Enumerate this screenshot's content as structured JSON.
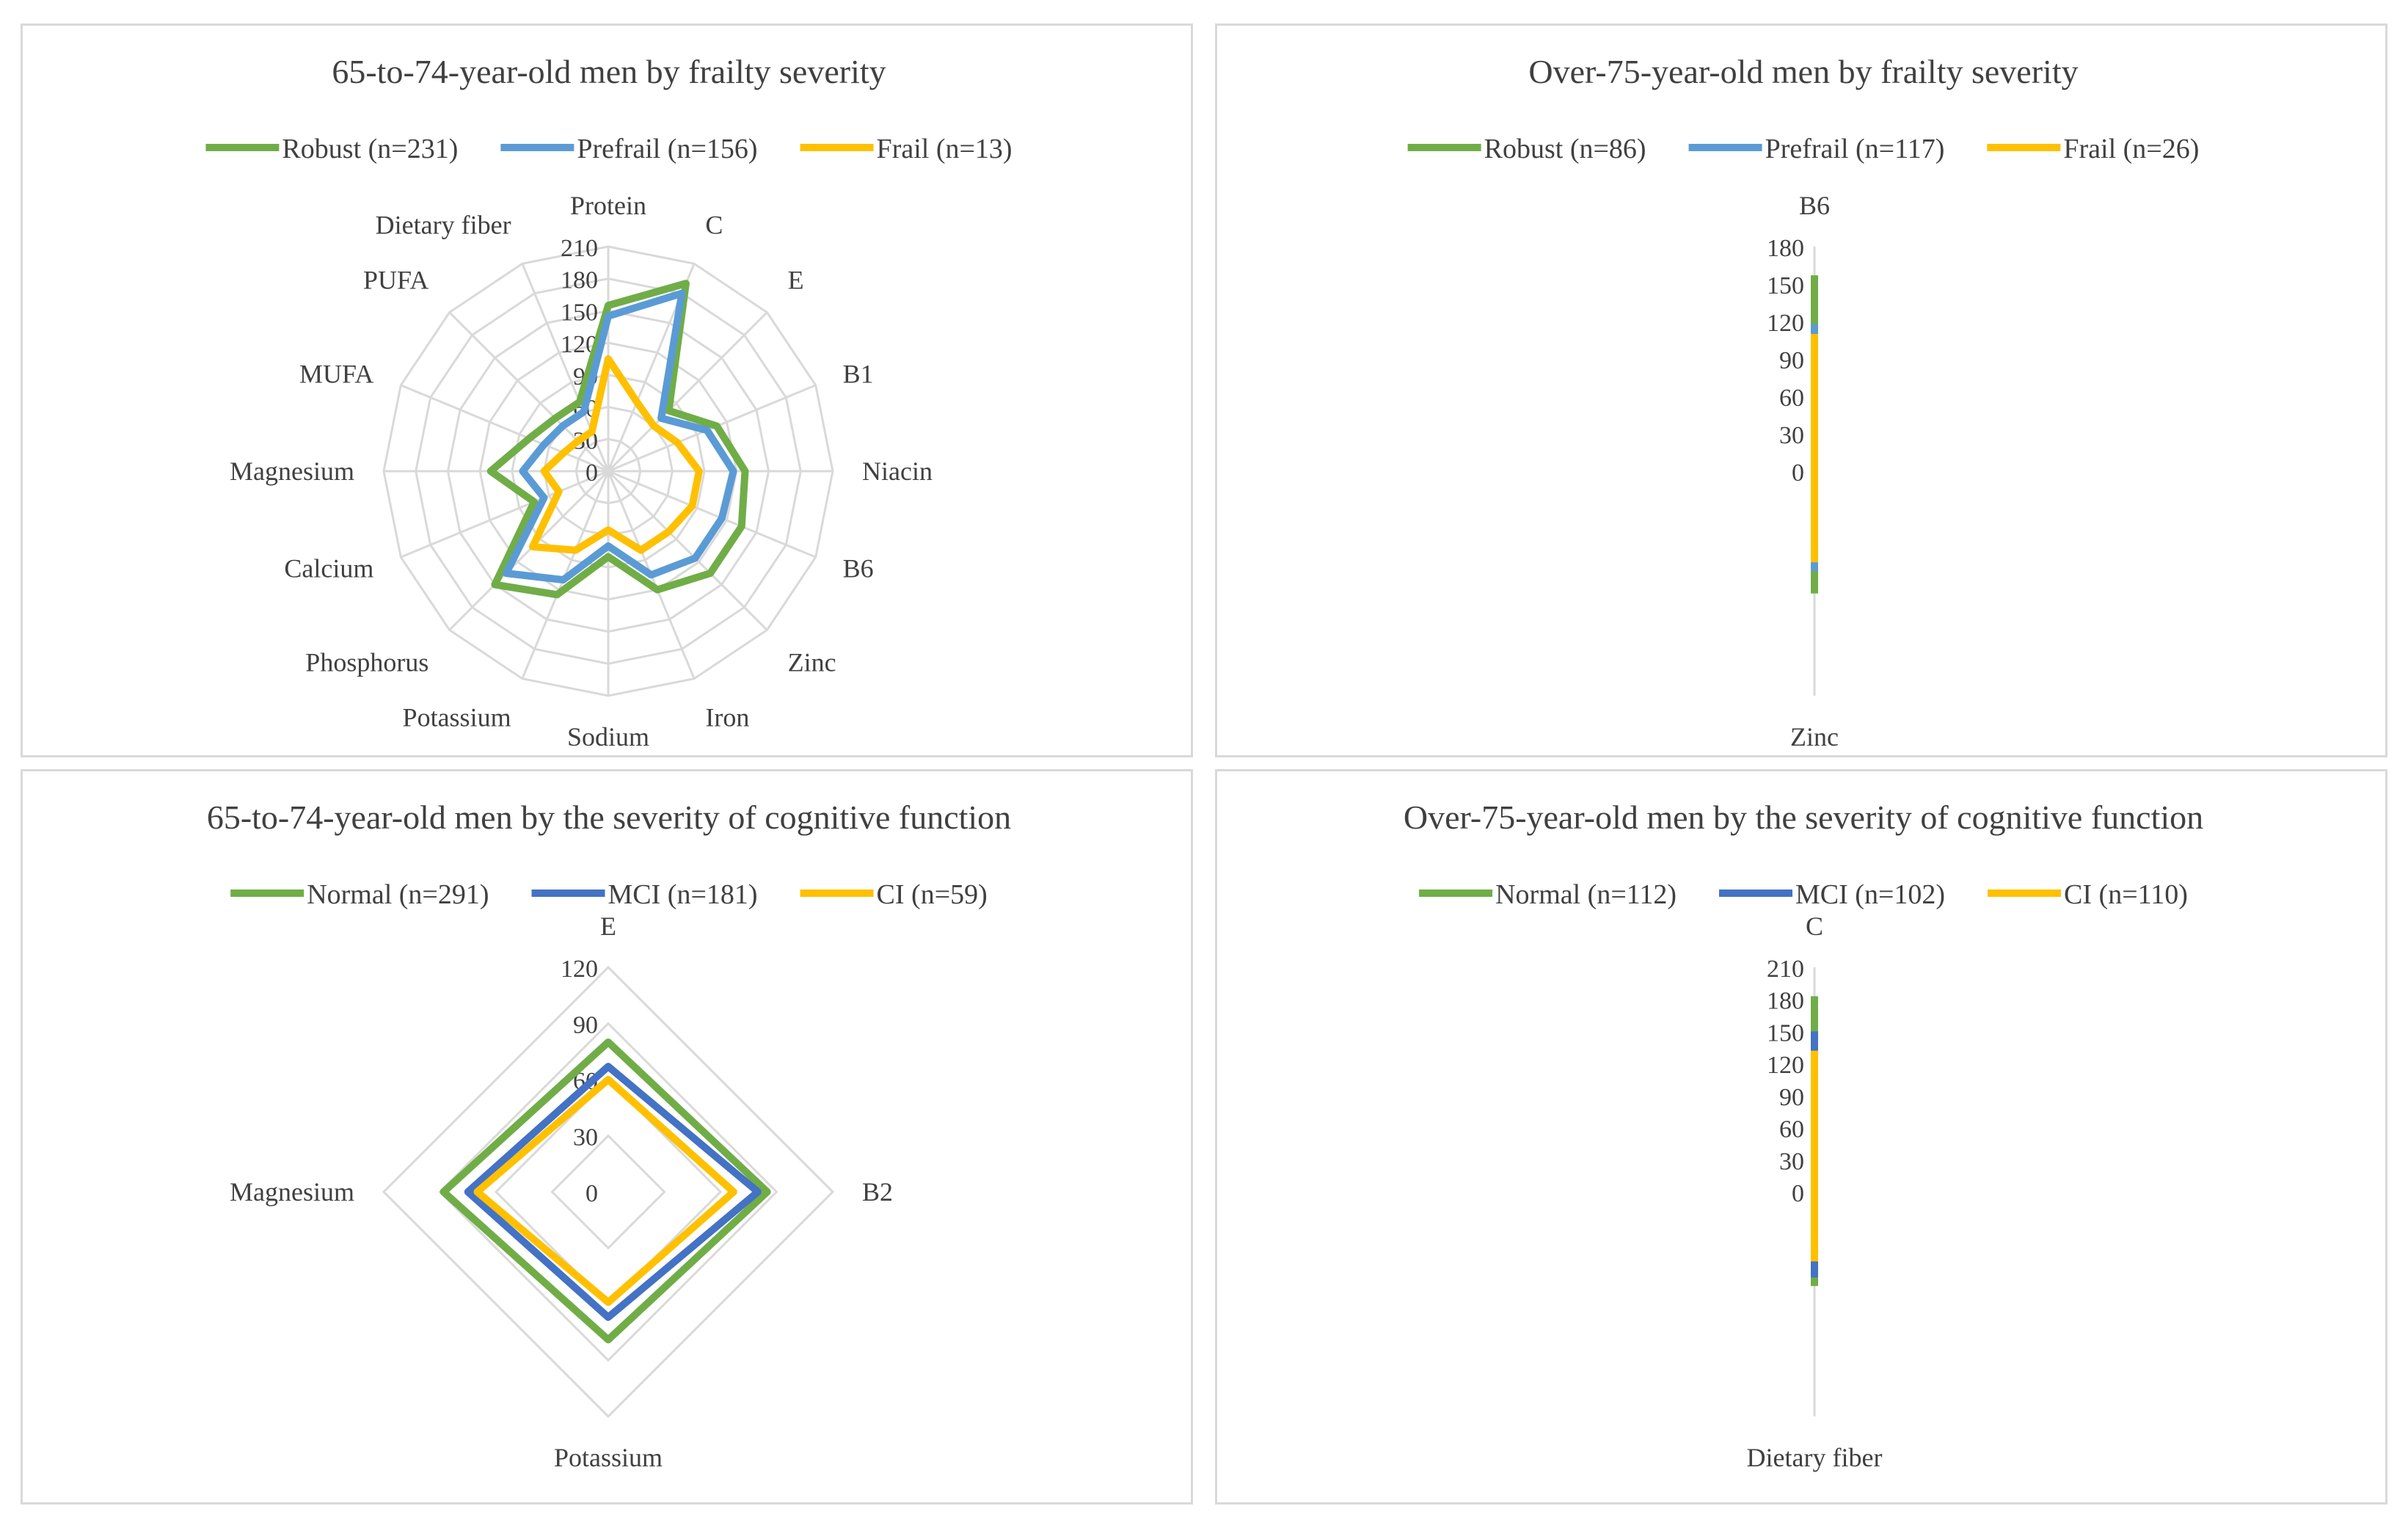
{
  "colors": {
    "green": "#70AD47",
    "light_blue": "#5B9BD5",
    "dark_blue": "#4472C4",
    "yellow": "#FFC000",
    "grid": "#d9d9d9",
    "text": "#404040"
  },
  "chart_data": [
    {
      "type": "radar",
      "title": "65-to-74-year-old men by frailty severity",
      "axes": [
        "Protein",
        "C",
        "E",
        "B1",
        "Niacin",
        "B6",
        "Zinc",
        "Iron",
        "Sodium",
        "Potassium",
        "Phosphorus",
        "Calcium",
        "Magnesium",
        "MUFA",
        "PUFA",
        "Dietary fiber"
      ],
      "ticks": [
        0,
        30,
        60,
        90,
        120,
        150,
        180,
        210
      ],
      "rlim": [
        0,
        210
      ],
      "series": [
        {
          "name": "Robust (n=231)",
          "color": "#70AD47",
          "values": [
            155,
            190,
            80,
            110,
            128,
            135,
            135,
            120,
            80,
            125,
            150,
            75,
            110,
            80,
            70,
            70
          ]
        },
        {
          "name": "Prefrail (n=156)",
          "color": "#5B9BD5",
          "values": [
            145,
            180,
            70,
            100,
            117,
            115,
            115,
            105,
            70,
            110,
            135,
            65,
            80,
            65,
            60,
            60
          ]
        },
        {
          "name": "Frail (n=13)",
          "color": "#FFC000",
          "values": [
            105,
            70,
            60,
            70,
            85,
            85,
            80,
            80,
            55,
            80,
            100,
            50,
            60,
            45,
            40,
            40
          ]
        }
      ]
    },
    {
      "type": "radar",
      "title": "Over-75-year-old men by frailty severity",
      "axes": [
        "B6",
        "Zinc"
      ],
      "ticks": [
        0,
        30,
        60,
        90,
        120,
        150,
        180
      ],
      "rlim": [
        0,
        180
      ],
      "series": [
        {
          "name": "Robust (n=86)",
          "color": "#70AD47",
          "values": [
            157,
            98
          ]
        },
        {
          "name": "Prefrail (n=117)",
          "color": "#5B9BD5",
          "values": [
            118,
            80
          ]
        },
        {
          "name": "Frail (n=26)",
          "color": "#FFC000",
          "values": [
            110,
            73
          ]
        }
      ]
    },
    {
      "type": "radar",
      "title": "65-to-74-year-old men by the severity of cognitive function",
      "axes": [
        "E",
        "B2",
        "Potassium",
        "Magnesium"
      ],
      "ticks": [
        0,
        30,
        60,
        90,
        120
      ],
      "rlim": [
        0,
        120
      ],
      "series": [
        {
          "name": "Normal (n=291)",
          "color": "#70AD47",
          "values": [
            80,
            85,
            79,
            88
          ]
        },
        {
          "name": "MCI (n=181)",
          "color": "#4472C4",
          "values": [
            67,
            80,
            67,
            75
          ]
        },
        {
          "name": "CI (n=59)",
          "color": "#FFC000",
          "values": [
            60,
            67,
            59,
            70
          ]
        }
      ]
    },
    {
      "type": "radar",
      "title": "Over-75-year-old men by the severity of cognitive function",
      "axes": [
        "C",
        "Dietary fiber"
      ],
      "ticks": [
        0,
        30,
        60,
        90,
        120,
        150,
        180,
        210
      ],
      "rlim": [
        0,
        210
      ],
      "series": [
        {
          "name": "Normal (n=112)",
          "color": "#70AD47",
          "values": [
            183,
            88
          ]
        },
        {
          "name": "MCI (n=102)",
          "color": "#4472C4",
          "values": [
            150,
            80
          ]
        },
        {
          "name": "CI (n=110)",
          "color": "#FFC000",
          "values": [
            132,
            65
          ]
        }
      ]
    }
  ]
}
